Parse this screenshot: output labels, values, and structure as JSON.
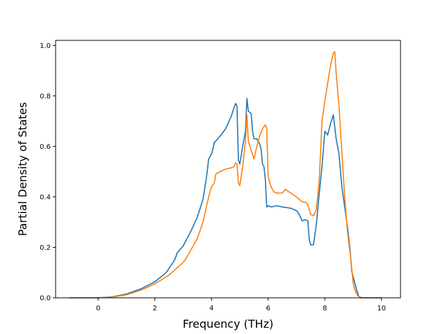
{
  "chart_data": {
    "type": "line",
    "title": "",
    "xlabel": "Frequency (THz)",
    "ylabel": "Partial Density of States",
    "xlim": [
      -1.5,
      10.67
    ],
    "ylim": [
      0.0,
      1.02
    ],
    "xticks": [
      0,
      2,
      4,
      6,
      8,
      10
    ],
    "yticks": [
      0.0,
      0.2,
      0.4,
      0.6,
      0.8,
      1.0
    ],
    "xtick_labels": [
      "0",
      "2",
      "4",
      "6",
      "8",
      "10"
    ],
    "ytick_labels": [
      "0.0",
      "0.2",
      "0.4",
      "0.6",
      "0.8",
      "1.0"
    ],
    "grid": false,
    "legend": false,
    "series": [
      {
        "color": "#1f77b4",
        "points": [
          [
            -1.0,
            0.0
          ],
          [
            0.0,
            0.0
          ],
          [
            0.5,
            0.004
          ],
          [
            1.0,
            0.015
          ],
          [
            1.5,
            0.035
          ],
          [
            2.0,
            0.063
          ],
          [
            2.4,
            0.1
          ],
          [
            2.7,
            0.15
          ],
          [
            2.8,
            0.18
          ],
          [
            3.0,
            0.205
          ],
          [
            3.3,
            0.27
          ],
          [
            3.5,
            0.32
          ],
          [
            3.7,
            0.39
          ],
          [
            3.8,
            0.46
          ],
          [
            3.85,
            0.5
          ],
          [
            3.9,
            0.55
          ],
          [
            4.0,
            0.57
          ],
          [
            4.05,
            0.59
          ],
          [
            4.1,
            0.615
          ],
          [
            4.3,
            0.64
          ],
          [
            4.5,
            0.67
          ],
          [
            4.7,
            0.72
          ],
          [
            4.8,
            0.755
          ],
          [
            4.85,
            0.77
          ],
          [
            4.9,
            0.76
          ],
          [
            4.95,
            0.545
          ],
          [
            5.0,
            0.53
          ],
          [
            5.1,
            0.6
          ],
          [
            5.2,
            0.66
          ],
          [
            5.25,
            0.79
          ],
          [
            5.3,
            0.74
          ],
          [
            5.4,
            0.73
          ],
          [
            5.45,
            0.66
          ],
          [
            5.5,
            0.63
          ],
          [
            5.6,
            0.63
          ],
          [
            5.7,
            0.61
          ],
          [
            5.75,
            0.59
          ],
          [
            5.8,
            0.53
          ],
          [
            5.85,
            0.52
          ],
          [
            5.9,
            0.47
          ],
          [
            5.95,
            0.36
          ],
          [
            6.0,
            0.365
          ],
          [
            6.1,
            0.36
          ],
          [
            6.3,
            0.365
          ],
          [
            6.5,
            0.36
          ],
          [
            6.8,
            0.355
          ],
          [
            7.0,
            0.345
          ],
          [
            7.1,
            0.33
          ],
          [
            7.2,
            0.305
          ],
          [
            7.3,
            0.31
          ],
          [
            7.4,
            0.305
          ],
          [
            7.45,
            0.23
          ],
          [
            7.5,
            0.21
          ],
          [
            7.6,
            0.21
          ],
          [
            7.7,
            0.29
          ],
          [
            7.8,
            0.41
          ],
          [
            7.9,
            0.52
          ],
          [
            8.0,
            0.66
          ],
          [
            8.1,
            0.645
          ],
          [
            8.2,
            0.69
          ],
          [
            8.3,
            0.725
          ],
          [
            8.4,
            0.63
          ],
          [
            8.5,
            0.57
          ],
          [
            8.6,
            0.44
          ],
          [
            8.8,
            0.28
          ],
          [
            8.9,
            0.18
          ],
          [
            8.95,
            0.105
          ],
          [
            9.1,
            0.04
          ],
          [
            9.2,
            0.005
          ],
          [
            9.3,
            0.0
          ],
          [
            10.0,
            0.0
          ]
        ]
      },
      {
        "color": "#ff7f0e",
        "points": [
          [
            -1.0,
            0.0
          ],
          [
            0.0,
            0.0
          ],
          [
            0.5,
            0.003
          ],
          [
            1.0,
            0.012
          ],
          [
            1.5,
            0.03
          ],
          [
            2.0,
            0.055
          ],
          [
            2.5,
            0.09
          ],
          [
            2.8,
            0.12
          ],
          [
            3.0,
            0.14
          ],
          [
            3.1,
            0.155
          ],
          [
            3.2,
            0.175
          ],
          [
            3.5,
            0.235
          ],
          [
            3.7,
            0.3
          ],
          [
            3.8,
            0.35
          ],
          [
            3.9,
            0.4
          ],
          [
            4.0,
            0.44
          ],
          [
            4.1,
            0.455
          ],
          [
            4.15,
            0.49
          ],
          [
            4.3,
            0.5
          ],
          [
            4.5,
            0.51
          ],
          [
            4.7,
            0.515
          ],
          [
            4.8,
            0.52
          ],
          [
            4.85,
            0.535
          ],
          [
            4.9,
            0.53
          ],
          [
            4.95,
            0.455
          ],
          [
            5.0,
            0.445
          ],
          [
            5.1,
            0.52
          ],
          [
            5.2,
            0.62
          ],
          [
            5.25,
            0.725
          ],
          [
            5.3,
            0.62
          ],
          [
            5.4,
            0.585
          ],
          [
            5.5,
            0.55
          ],
          [
            5.6,
            0.6
          ],
          [
            5.7,
            0.64
          ],
          [
            5.8,
            0.67
          ],
          [
            5.9,
            0.685
          ],
          [
            5.95,
            0.67
          ],
          [
            6.0,
            0.48
          ],
          [
            6.1,
            0.44
          ],
          [
            6.2,
            0.42
          ],
          [
            6.3,
            0.415
          ],
          [
            6.5,
            0.415
          ],
          [
            6.6,
            0.43
          ],
          [
            6.8,
            0.415
          ],
          [
            7.0,
            0.4
          ],
          [
            7.1,
            0.39
          ],
          [
            7.2,
            0.38
          ],
          [
            7.3,
            0.38
          ],
          [
            7.4,
            0.37
          ],
          [
            7.5,
            0.33
          ],
          [
            7.6,
            0.325
          ],
          [
            7.7,
            0.35
          ],
          [
            7.8,
            0.46
          ],
          [
            7.9,
            0.7
          ],
          [
            8.0,
            0.78
          ],
          [
            8.1,
            0.85
          ],
          [
            8.2,
            0.92
          ],
          [
            8.3,
            0.97
          ],
          [
            8.35,
            0.975
          ],
          [
            8.4,
            0.89
          ],
          [
            8.5,
            0.76
          ],
          [
            8.6,
            0.58
          ],
          [
            8.7,
            0.4
          ],
          [
            8.8,
            0.26
          ],
          [
            8.9,
            0.17
          ],
          [
            9.0,
            0.06
          ],
          [
            9.05,
            0.035
          ],
          [
            9.15,
            0.01
          ],
          [
            9.25,
            0.0
          ],
          [
            10.0,
            0.0
          ]
        ]
      }
    ]
  }
}
